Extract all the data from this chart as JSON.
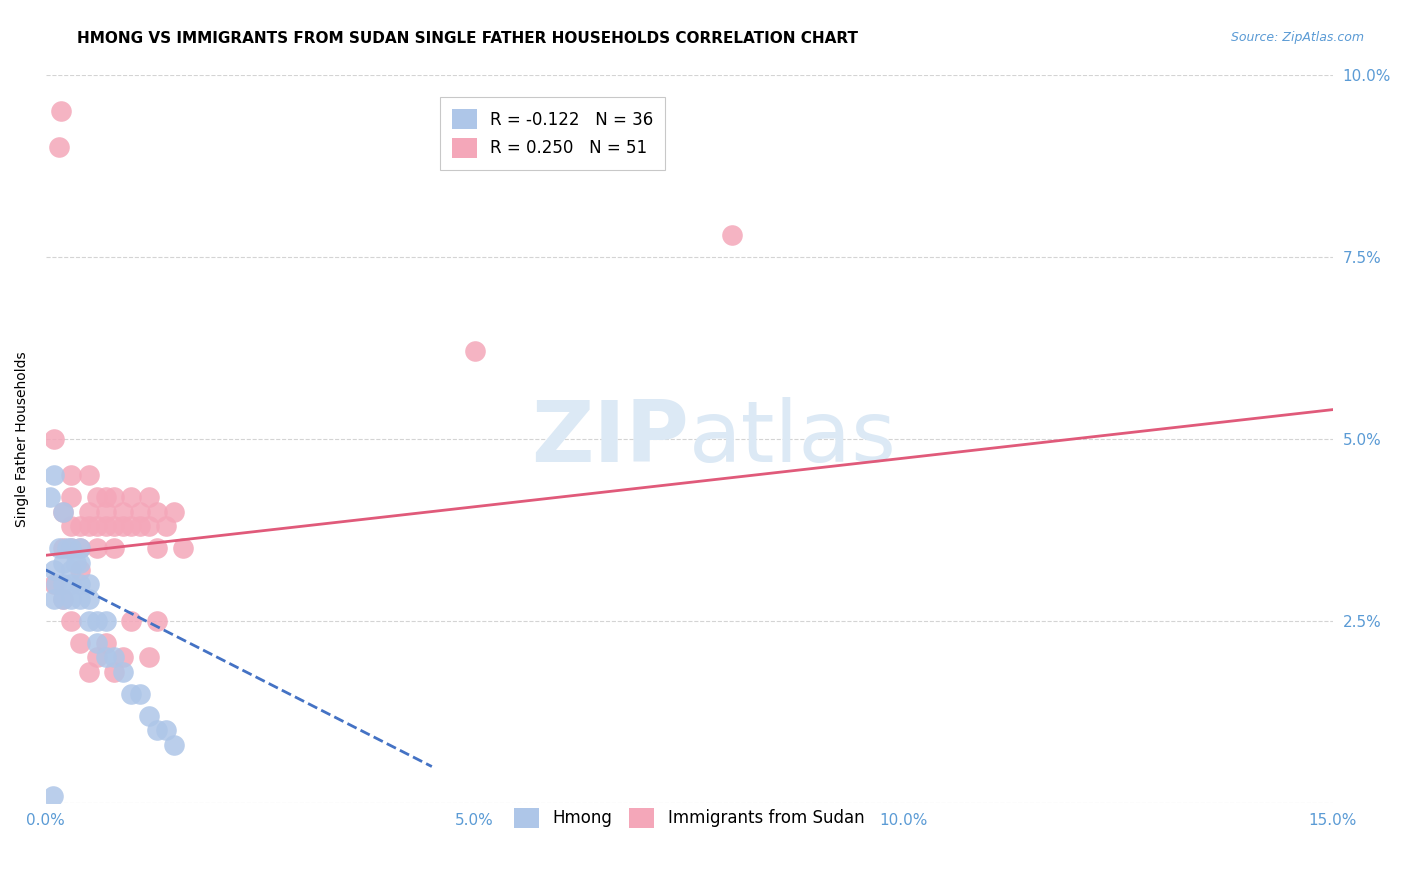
{
  "title": "HMONG VS IMMIGRANTS FROM SUDAN SINGLE FATHER HOUSEHOLDS CORRELATION CHART",
  "source": "Source: ZipAtlas.com",
  "ylabel": "Single Father Households",
  "xlim": [
    0.0,
    0.15
  ],
  "ylim": [
    0.0,
    0.1
  ],
  "hmong_color": "#aec6e8",
  "sudan_color": "#f4a7b9",
  "hmong_line_color": "#4472c4",
  "sudan_line_color": "#e05a7a",
  "axis_color": "#5b9bd5",
  "background_color": "#ffffff",
  "grid_color": "#d4d4d4",
  "watermark": "ZIPatlas",
  "watermark_color": "#dce9f5",
  "title_fontsize": 11,
  "axis_label_fontsize": 10,
  "tick_fontsize": 11,
  "hmong_R": -0.122,
  "hmong_N": 36,
  "sudan_R": 0.25,
  "sudan_N": 51,
  "hmong_x": [
    0.0008,
    0.001,
    0.001,
    0.0012,
    0.0015,
    0.002,
    0.002,
    0.002,
    0.0025,
    0.003,
    0.003,
    0.003,
    0.003,
    0.0035,
    0.004,
    0.004,
    0.004,
    0.004,
    0.005,
    0.005,
    0.005,
    0.006,
    0.006,
    0.007,
    0.007,
    0.008,
    0.009,
    0.01,
    0.011,
    0.012,
    0.013,
    0.014,
    0.015,
    0.0005,
    0.001,
    0.002
  ],
  "hmong_y": [
    0.001,
    0.028,
    0.032,
    0.03,
    0.035,
    0.03,
    0.033,
    0.028,
    0.035,
    0.032,
    0.03,
    0.028,
    0.035,
    0.033,
    0.03,
    0.028,
    0.035,
    0.033,
    0.028,
    0.025,
    0.03,
    0.025,
    0.022,
    0.02,
    0.025,
    0.02,
    0.018,
    0.015,
    0.015,
    0.012,
    0.01,
    0.01,
    0.008,
    0.042,
    0.045,
    0.04
  ],
  "sudan_x": [
    0.001,
    0.001,
    0.002,
    0.002,
    0.002,
    0.003,
    0.003,
    0.003,
    0.003,
    0.004,
    0.004,
    0.004,
    0.005,
    0.005,
    0.005,
    0.006,
    0.006,
    0.006,
    0.007,
    0.007,
    0.007,
    0.008,
    0.008,
    0.008,
    0.009,
    0.009,
    0.01,
    0.01,
    0.011,
    0.011,
    0.012,
    0.012,
    0.013,
    0.013,
    0.014,
    0.015,
    0.016,
    0.0015,
    0.0018,
    0.08,
    0.05,
    0.003,
    0.004,
    0.005,
    0.006,
    0.007,
    0.008,
    0.009,
    0.01,
    0.012,
    0.013
  ],
  "sudan_y": [
    0.03,
    0.05,
    0.035,
    0.04,
    0.028,
    0.045,
    0.042,
    0.038,
    0.035,
    0.038,
    0.035,
    0.032,
    0.045,
    0.04,
    0.038,
    0.042,
    0.038,
    0.035,
    0.042,
    0.038,
    0.04,
    0.038,
    0.042,
    0.035,
    0.04,
    0.038,
    0.042,
    0.038,
    0.04,
    0.038,
    0.042,
    0.038,
    0.04,
    0.035,
    0.038,
    0.04,
    0.035,
    0.09,
    0.095,
    0.078,
    0.062,
    0.025,
    0.022,
    0.018,
    0.02,
    0.022,
    0.018,
    0.02,
    0.025,
    0.02,
    0.025
  ],
  "sudan_line_x": [
    0.0,
    0.15
  ],
  "sudan_line_y": [
    0.034,
    0.054
  ],
  "hmong_line_x": [
    0.0,
    0.045
  ],
  "hmong_line_y": [
    0.032,
    0.005
  ]
}
